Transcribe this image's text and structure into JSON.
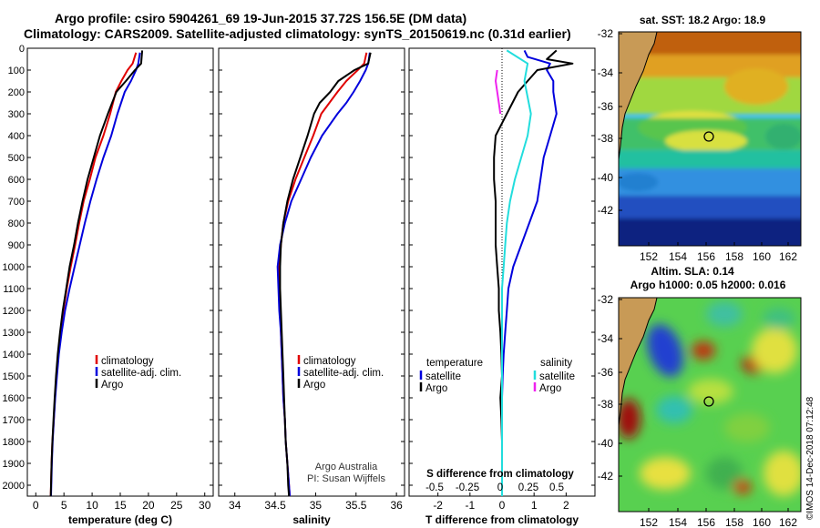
{
  "header": {
    "line1": "Argo profile: csiro 5904261_69 19-Jun-2015 37.72S 156.5E (DM data)",
    "line2": "Climatology: CARS2009. Satellite-adjusted climatology: synTS_20150619.nc (0.31d earlier)"
  },
  "colors": {
    "climatology": "#e00000",
    "satellite": "#0000dd",
    "argo": "#000000",
    "sal_satellite": "#22dddd",
    "sal_argo": "#ee22ee"
  },
  "depth_axis": {
    "range": [
      0,
      2050
    ],
    "ticks": [
      0,
      100,
      200,
      300,
      400,
      500,
      600,
      700,
      800,
      900,
      1000,
      1100,
      1200,
      1300,
      1400,
      1500,
      1600,
      1700,
      1800,
      1900,
      2000
    ]
  },
  "chart_data": [
    {
      "id": "temperature",
      "type": "line",
      "xlabel": "temperature (deg C)",
      "xlim": [
        -1.5,
        31.5
      ],
      "xticks": [
        0,
        5,
        10,
        15,
        20,
        25,
        30
      ],
      "legend": [
        "climatology",
        "satellite-adj. clim.",
        "Argo"
      ],
      "series": [
        {
          "name": "climatology",
          "color_key": "climatology",
          "points": [
            [
              17.8,
              20
            ],
            [
              17.2,
              70
            ],
            [
              16.3,
              100
            ],
            [
              15.2,
              150
            ],
            [
              14.2,
              200
            ],
            [
              13.2,
              300
            ],
            [
              12.0,
              400
            ],
            [
              10.6,
              500
            ],
            [
              9.6,
              600
            ],
            [
              8.5,
              700
            ],
            [
              7.7,
              800
            ],
            [
              7.0,
              900
            ],
            [
              6.2,
              1000
            ],
            [
              5.5,
              1100
            ],
            [
              4.9,
              1200
            ],
            [
              4.4,
              1300
            ],
            [
              4.0,
              1400
            ],
            [
              3.7,
              1500
            ],
            [
              3.4,
              1600
            ],
            [
              3.2,
              1700
            ],
            [
              2.95,
              1800
            ],
            [
              2.8,
              1900
            ],
            [
              2.7,
              2000
            ],
            [
              2.65,
              2050
            ]
          ]
        },
        {
          "name": "satellite-adj. clim.",
          "color_key": "satellite",
          "points": [
            [
              18.5,
              20
            ],
            [
              18.2,
              70
            ],
            [
              17.8,
              100
            ],
            [
              16.9,
              150
            ],
            [
              15.8,
              200
            ],
            [
              14.5,
              300
            ],
            [
              13.4,
              400
            ],
            [
              12.0,
              500
            ],
            [
              10.8,
              600
            ],
            [
              9.7,
              700
            ],
            [
              8.7,
              800
            ],
            [
              7.8,
              900
            ],
            [
              6.9,
              1000
            ],
            [
              6.0,
              1100
            ],
            [
              5.2,
              1200
            ],
            [
              4.6,
              1300
            ],
            [
              4.1,
              1400
            ],
            [
              3.75,
              1500
            ],
            [
              3.45,
              1600
            ],
            [
              3.2,
              1700
            ],
            [
              3.0,
              1800
            ],
            [
              2.85,
              1900
            ],
            [
              2.75,
              2000
            ],
            [
              2.7,
              2050
            ]
          ]
        },
        {
          "name": "Argo",
          "color_key": "argo",
          "points": [
            [
              18.9,
              10
            ],
            [
              18.8,
              40
            ],
            [
              18.7,
              70
            ],
            [
              17.6,
              100
            ],
            [
              16.0,
              150
            ],
            [
              14.3,
              200
            ],
            [
              12.8,
              300
            ],
            [
              11.4,
              400
            ],
            [
              10.3,
              500
            ],
            [
              9.2,
              600
            ],
            [
              8.3,
              700
            ],
            [
              7.5,
              800
            ],
            [
              6.8,
              900
            ],
            [
              6.0,
              1000
            ],
            [
              5.4,
              1100
            ],
            [
              4.8,
              1200
            ],
            [
              4.3,
              1300
            ],
            [
              3.9,
              1400
            ],
            [
              3.6,
              1500
            ],
            [
              3.35,
              1600
            ],
            [
              3.15,
              1700
            ],
            [
              2.95,
              1800
            ],
            [
              2.8,
              1900
            ],
            [
              2.7,
              2000
            ],
            [
              2.65,
              2050
            ]
          ]
        }
      ]
    },
    {
      "id": "salinity",
      "type": "line",
      "xlabel": "salinity",
      "xlim": [
        33.8,
        36.1
      ],
      "xticks": [
        34,
        34.5,
        35,
        35.5,
        36
      ],
      "xtick_labels": [
        "34",
        "34.5",
        "35",
        "35.5",
        "36"
      ],
      "legend": [
        "climatology",
        "satellite-adj. clim.",
        "Argo"
      ],
      "credit": [
        "Argo Australia",
        "PI: Susan Wijffels"
      ],
      "series": [
        {
          "name": "climatology",
          "color_key": "climatology",
          "points": [
            [
              35.63,
              20
            ],
            [
              35.6,
              70
            ],
            [
              35.52,
              100
            ],
            [
              35.38,
              150
            ],
            [
              35.27,
              200
            ],
            [
              35.17,
              250
            ],
            [
              35.07,
              300
            ],
            [
              34.97,
              400
            ],
            [
              34.86,
              500
            ],
            [
              34.75,
              600
            ],
            [
              34.66,
              700
            ],
            [
              34.6,
              800
            ],
            [
              34.57,
              900
            ],
            [
              34.55,
              1000
            ],
            [
              34.55,
              1100
            ],
            [
              34.56,
              1200
            ],
            [
              34.57,
              1300
            ],
            [
              34.58,
              1400
            ],
            [
              34.59,
              1500
            ],
            [
              34.6,
              1600
            ],
            [
              34.62,
              1700
            ],
            [
              34.63,
              1800
            ],
            [
              34.65,
              1900
            ],
            [
              34.67,
              2000
            ],
            [
              34.68,
              2050
            ]
          ]
        },
        {
          "name": "satellite-adj. clim.",
          "color_key": "satellite",
          "points": [
            [
              35.67,
              20
            ],
            [
              35.65,
              70
            ],
            [
              35.62,
              100
            ],
            [
              35.55,
              150
            ],
            [
              35.47,
              200
            ],
            [
              35.38,
              250
            ],
            [
              35.27,
              300
            ],
            [
              35.08,
              400
            ],
            [
              34.94,
              500
            ],
            [
              34.82,
              600
            ],
            [
              34.7,
              700
            ],
            [
              34.62,
              800
            ],
            [
              34.56,
              900
            ],
            [
              34.53,
              1000
            ],
            [
              34.54,
              1100
            ],
            [
              34.55,
              1200
            ],
            [
              34.57,
              1300
            ],
            [
              34.58,
              1400
            ],
            [
              34.59,
              1500
            ],
            [
              34.6,
              1600
            ],
            [
              34.62,
              1700
            ],
            [
              34.63,
              1800
            ],
            [
              34.65,
              1900
            ],
            [
              34.67,
              2000
            ],
            [
              34.68,
              2050
            ]
          ]
        },
        {
          "name": "Argo",
          "color_key": "argo",
          "points": [
            [
              35.68,
              20
            ],
            [
              35.65,
              70
            ],
            [
              35.48,
              100
            ],
            [
              35.28,
              150
            ],
            [
              35.18,
              200
            ],
            [
              35.05,
              250
            ],
            [
              34.98,
              300
            ],
            [
              34.9,
              400
            ],
            [
              34.81,
              500
            ],
            [
              34.72,
              600
            ],
            [
              34.65,
              700
            ],
            [
              34.6,
              800
            ],
            [
              34.57,
              900
            ],
            [
              34.56,
              1000
            ],
            [
              34.56,
              1100
            ],
            [
              34.57,
              1200
            ],
            [
              34.58,
              1300
            ],
            [
              34.59,
              1400
            ],
            [
              34.6,
              1500
            ],
            [
              34.61,
              1600
            ],
            [
              34.62,
              1700
            ],
            [
              34.63,
              1800
            ],
            [
              34.65,
              1900
            ],
            [
              34.66,
              2000
            ],
            [
              34.67,
              2050
            ]
          ]
        }
      ]
    },
    {
      "id": "difference",
      "type": "line",
      "xlabel": "T difference from climatology",
      "xlim": [
        -2.9,
        2.9
      ],
      "xticks": [
        -2,
        -1,
        0,
        1,
        2
      ],
      "xtick_labels": [
        "-2",
        "-1",
        "0",
        "1",
        "2"
      ],
      "inner_label": "S difference from climatology",
      "inner_ticks": [
        "-0.5",
        "-0.25",
        "0",
        "0.25",
        "0.5"
      ],
      "legend_left": {
        "title": "temperature",
        "items": [
          "satellite",
          "Argo"
        ]
      },
      "legend_right": {
        "title": "salinity",
        "items": [
          "satellite",
          "Argo"
        ]
      },
      "series": [
        {
          "name": "temperature satellite",
          "color_key": "satellite",
          "points": [
            [
              0.7,
              10
            ],
            [
              0.8,
              40
            ],
            [
              1.5,
              70
            ],
            [
              1.4,
              100
            ],
            [
              1.6,
              150
            ],
            [
              1.6,
              200
            ],
            [
              1.7,
              300
            ],
            [
              1.5,
              400
            ],
            [
              1.3,
              500
            ],
            [
              1.2,
              600
            ],
            [
              1.1,
              700
            ],
            [
              0.85,
              800
            ],
            [
              0.6,
              900
            ],
            [
              0.35,
              1000
            ],
            [
              0.2,
              1100
            ],
            [
              0.15,
              1200
            ],
            [
              0.1,
              1300
            ],
            [
              0.05,
              1400
            ],
            [
              0.02,
              1500
            ],
            [
              0.0,
              1600
            ],
            [
              0.0,
              1700
            ],
            [
              0.0,
              1800
            ],
            [
              0.0,
              1900
            ],
            [
              0.0,
              2000
            ],
            [
              0.0,
              2050
            ]
          ]
        },
        {
          "name": "temperature Argo",
          "color_key": "argo",
          "points": [
            [
              1.7,
              10
            ],
            [
              1.4,
              50
            ],
            [
              2.2,
              70
            ],
            [
              1.1,
              100
            ],
            [
              0.8,
              150
            ],
            [
              0.5,
              200
            ],
            [
              0.15,
              300
            ],
            [
              -0.2,
              400
            ],
            [
              -0.25,
              500
            ],
            [
              -0.25,
              600
            ],
            [
              -0.2,
              700
            ],
            [
              -0.2,
              800
            ],
            [
              -0.2,
              900
            ],
            [
              -0.15,
              1000
            ],
            [
              -0.1,
              1100
            ],
            [
              -0.1,
              1200
            ],
            [
              -0.05,
              1300
            ],
            [
              -0.02,
              1400
            ],
            [
              0.0,
              1500
            ],
            [
              -0.05,
              1600
            ],
            [
              -0.02,
              1700
            ],
            [
              0.0,
              1800
            ],
            [
              0.0,
              1900
            ],
            [
              0.0,
              2000
            ],
            [
              0.0,
              2050
            ]
          ]
        },
        {
          "name": "salinity satellite",
          "color_key": "sal_satellite",
          "points": [
            [
              0.15,
              10
            ],
            [
              0.8,
              70
            ],
            [
              0.7,
              150
            ],
            [
              0.9,
              300
            ],
            [
              0.8,
              400
            ],
            [
              0.6,
              500
            ],
            [
              0.4,
              600
            ],
            [
              0.25,
              700
            ],
            [
              0.15,
              800
            ],
            [
              0.1,
              900
            ],
            [
              0.05,
              1000
            ],
            [
              0.0,
              1100
            ],
            [
              0.0,
              1200
            ],
            [
              0.0,
              1300
            ],
            [
              0.0,
              1400
            ],
            [
              0.0,
              1500
            ],
            [
              0.0,
              1600
            ],
            [
              0.0,
              1700
            ],
            [
              0.0,
              1800
            ],
            [
              0.0,
              1900
            ],
            [
              0.0,
              2000
            ],
            [
              0.0,
              2050
            ]
          ]
        },
        {
          "name": "salinity Argo",
          "color_key": "sal_argo",
          "points": [
            [
              -0.15,
              100
            ],
            [
              -0.2,
              150
            ],
            [
              -0.1,
              250
            ],
            [
              -0.05,
              300
            ]
          ]
        }
      ]
    }
  ],
  "maps": [
    {
      "id": "sst-map",
      "title_lines": [
        "sat. SST: 18.2 Argo: 18.9"
      ],
      "xticks": [
        "152",
        "154",
        "156",
        "158",
        "160",
        "162"
      ],
      "yticks": [
        "-32",
        "-34",
        "-36",
        "-38",
        "-40",
        "-42"
      ]
    },
    {
      "id": "sla-map",
      "title_lines": [
        "Altim. SLA: 0.14",
        "Argo h1000: 0.05 h2000: 0.016"
      ],
      "xticks": [
        "152",
        "154",
        "156",
        "158",
        "160",
        "162"
      ],
      "yticks": [
        "-32",
        "-34",
        "-36",
        "-38",
        "-40",
        "-42"
      ]
    }
  ],
  "footer": {
    "vertical_stamp": "©IMOS 14-Dec-2018 07:12:48"
  }
}
